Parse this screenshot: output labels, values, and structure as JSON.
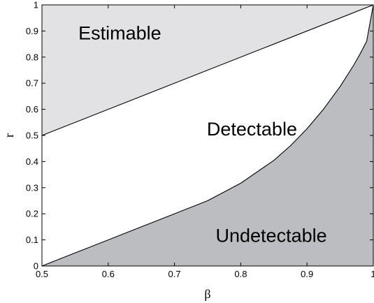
{
  "chart_data": {
    "type": "area",
    "title": "",
    "xlabel": "β",
    "ylabel": "r",
    "xlim": [
      0.5,
      1.0
    ],
    "ylim": [
      0,
      1
    ],
    "x_ticks": [
      "0.5",
      "0.6",
      "0.7",
      "0.8",
      "0.9",
      "1"
    ],
    "y_ticks": [
      "0",
      "0.1",
      "0.2",
      "0.3",
      "0.4",
      "0.5",
      "0.6",
      "0.7",
      "0.8",
      "0.9",
      "1"
    ],
    "grid": false,
    "boundaries": [
      {
        "name": "estimation-boundary",
        "x": [
          0.5,
          1.0
        ],
        "y": [
          0.5,
          1.0
        ]
      },
      {
        "name": "detection-boundary",
        "x": [
          0.5,
          0.55,
          0.6,
          0.65,
          0.7,
          0.75,
          0.8,
          0.85,
          0.875,
          0.9,
          0.925,
          0.95,
          0.97,
          0.98,
          0.99,
          1.0
        ],
        "y": [
          0.0,
          0.05,
          0.1,
          0.15,
          0.2,
          0.25,
          0.3172,
          0.4046,
          0.4606,
          0.5257,
          0.601,
          0.6877,
          0.7674,
          0.812,
          0.8607,
          1.0
        ]
      }
    ],
    "regions": [
      {
        "label": "Estimable",
        "color": "#e2e2e4",
        "label_at": [
          0.68,
          0.868
        ]
      },
      {
        "label": "Detectable",
        "color": "#ffffff",
        "label_at": [
          0.885,
          0.5
        ]
      },
      {
        "label": "Undetectable",
        "color": "#bcbdc0",
        "label_at": [
          0.93,
          0.092
        ]
      }
    ]
  }
}
